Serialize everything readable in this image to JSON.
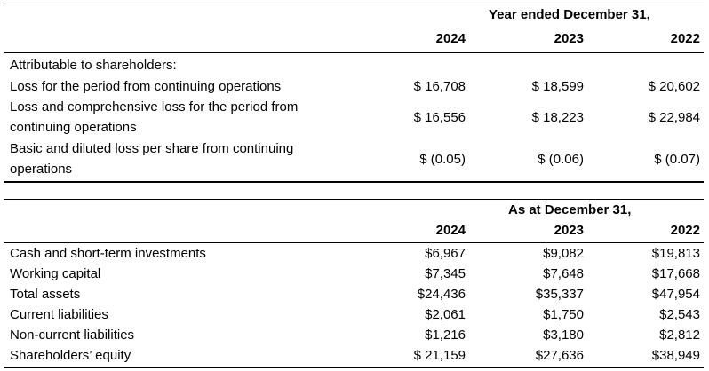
{
  "table1": {
    "period_header": "Year ended December 31,",
    "years": [
      "2024",
      "2023",
      "2022"
    ],
    "section_label": "Attributable to shareholders:",
    "rows": [
      {
        "label_lines": [
          "Loss for the period from continuing  operations"
        ],
        "values": [
          "$ 16,708",
          "$ 18,599",
          "$ 20,602"
        ]
      },
      {
        "label_lines": [
          "Loss and comprehensive loss for the period from",
          "continuing  operations"
        ],
        "values": [
          "$ 16,556",
          "$ 18,223",
          "$ 22,984"
        ]
      },
      {
        "label_lines": [
          "Basic and diluted loss per share from continuing",
          "operations"
        ],
        "values": [
          "$ (0.05)",
          "$ (0.06)",
          "$ (0.07)"
        ]
      }
    ]
  },
  "table2": {
    "period_header": "As at December 31,",
    "years": [
      "2024",
      "2023",
      "2022"
    ],
    "rows": [
      {
        "label": "Cash and short-term investments",
        "values": [
          "$6,967",
          "$9,082",
          "$19,813"
        ]
      },
      {
        "label": "Working capital",
        "values": [
          "$7,345",
          "$7,648",
          "$17,668"
        ]
      },
      {
        "label": "Total assets",
        "values": [
          "$24,436",
          "$35,337",
          "$47,954"
        ]
      },
      {
        "label": "Current liabilities",
        "values": [
          "$2,061",
          "$1,750",
          "$2,543"
        ]
      },
      {
        "label": "Non-current liabilities",
        "values": [
          "$1,216",
          "$3,180",
          "$2,812"
        ]
      },
      {
        "label": "Shareholders’ equity",
        "values": [
          "$ 21,159",
          "$27,636",
          "$38,949"
        ]
      }
    ]
  }
}
